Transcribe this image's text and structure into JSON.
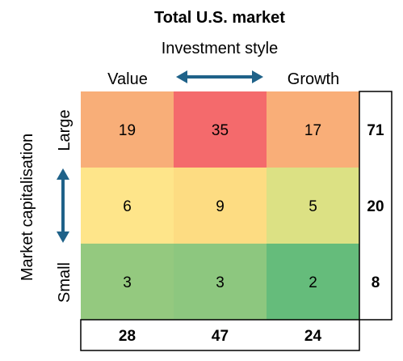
{
  "chart_data": {
    "type": "heatmap",
    "title": "Total U.S. market",
    "subtitle": "Investment style",
    "x_axis": {
      "left_label": "Value",
      "right_label": "Growth"
    },
    "y_axis": {
      "title": "Market capitalisation",
      "top_label": "Large",
      "bottom_label": "Small"
    },
    "values": [
      [
        19,
        35,
        17
      ],
      [
        6,
        9,
        5
      ],
      [
        3,
        3,
        2
      ]
    ],
    "row_totals": [
      71,
      20,
      8
    ],
    "column_totals": [
      28,
      47,
      24
    ],
    "colors": [
      [
        "#F8AE78",
        "#F46A6C",
        "#F9AE78"
      ],
      [
        "#FEE58A",
        "#FDDC82",
        "#DCE184"
      ],
      [
        "#94C97F",
        "#8DC77F",
        "#65BC7B"
      ]
    ],
    "arrow_color": "#1F6289"
  }
}
